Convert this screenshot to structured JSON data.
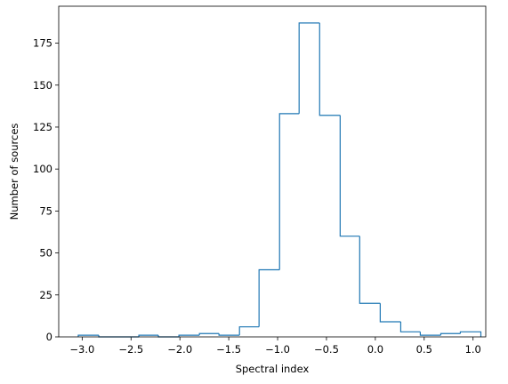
{
  "chart_data": {
    "type": "histogram",
    "xlabel": "Spectral index",
    "ylabel": "Number of sources",
    "bins": [
      -3.04,
      -2.83,
      -2.63,
      -2.42,
      -2.22,
      -2.01,
      -1.8,
      -1.6,
      -1.39,
      -1.19,
      -0.98,
      -0.78,
      -0.57,
      -0.36,
      -0.16,
      0.05,
      0.26,
      0.46,
      0.67,
      0.87,
      1.08
    ],
    "values": [
      1,
      0,
      0,
      1,
      0,
      1,
      2,
      1,
      6,
      40,
      133,
      187,
      132,
      60,
      20,
      9,
      3,
      1,
      2,
      3
    ],
    "color": "#1f77b4",
    "xlim": [
      -3.24,
      1.13
    ],
    "ylim": [
      0,
      197
    ],
    "xticks": [
      {
        "value": -3.0,
        "label": "−3.0"
      },
      {
        "value": -2.5,
        "label": "−2.5"
      },
      {
        "value": -2.0,
        "label": "−2.0"
      },
      {
        "value": -1.5,
        "label": "−1.5"
      },
      {
        "value": -1.0,
        "label": "−1.0"
      },
      {
        "value": -0.5,
        "label": "−0.5"
      },
      {
        "value": 0.0,
        "label": "0.0"
      },
      {
        "value": 0.5,
        "label": "0.5"
      },
      {
        "value": 1.0,
        "label": "1.0"
      }
    ],
    "yticks": [
      0,
      25,
      50,
      75,
      100,
      125,
      150,
      175
    ]
  }
}
